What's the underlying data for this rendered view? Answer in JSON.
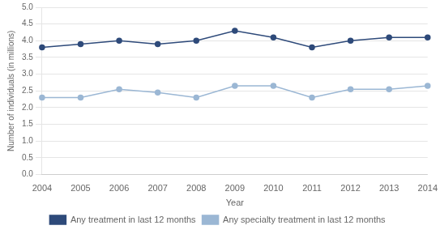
{
  "chart_data": {
    "type": "line",
    "x_label": "Year",
    "y_label": "Number of individuals (in millions)",
    "categories": [
      2004,
      2005,
      2006,
      2007,
      2008,
      2009,
      2010,
      2011,
      2012,
      2013,
      2014
    ],
    "series": [
      {
        "name": "Any treatment in last 12 months",
        "color": "#2E4A7A",
        "marker": "circle",
        "values": [
          3.8,
          3.9,
          4.0,
          3.9,
          4.0,
          4.3,
          4.1,
          3.8,
          4.0,
          4.1,
          4.1
        ]
      },
      {
        "name": "Any specialty treatment in last 12 months",
        "color": "#9BB7D4",
        "marker": "circle",
        "values": [
          2.3,
          2.3,
          2.55,
          2.45,
          2.3,
          2.65,
          2.65,
          2.3,
          2.55,
          2.55,
          2.65
        ]
      }
    ],
    "ylim": [
      0.0,
      5.0
    ],
    "yticks": [
      {
        "value": 0.0,
        "label": "0.0"
      },
      0.5,
      {
        "value": 1.0,
        "label": "1.0"
      },
      1.5,
      {
        "value": 2.0,
        "label": "2.0"
      },
      2.5,
      {
        "value": 3.0,
        "label": "3.0"
      },
      3.5,
      {
        "value": 4.0,
        "label": "4.0"
      },
      4.5,
      {
        "value": 5.0,
        "label": "5.0"
      }
    ],
    "grid": true,
    "legend": "bottom"
  }
}
